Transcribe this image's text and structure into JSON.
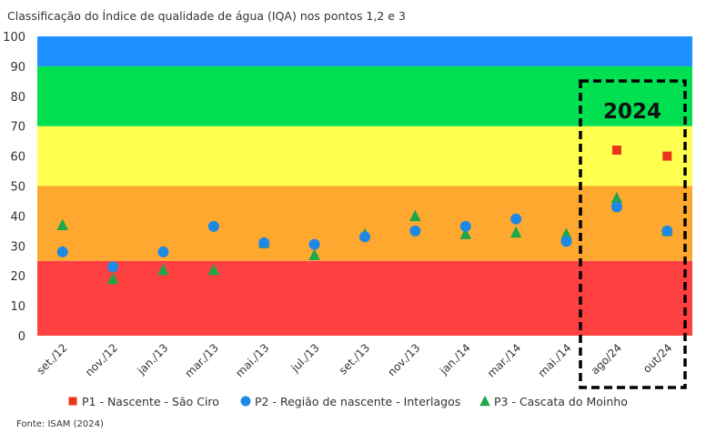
{
  "chart_data": {
    "type": "scatter",
    "title": "Classificação do Índice de qualidade de água (IQA) nos pontos 1,2 e 3",
    "source": "Fonte: ISAM (2024)",
    "highlight_label": "2024",
    "categories": [
      "set./12",
      "nov./12",
      "jan./13",
      "mar./13",
      "mai./13",
      "jul./13",
      "set./13",
      "nov./13",
      "jan./14",
      "mar./14",
      "mai./14",
      "ago/24",
      "out/24"
    ],
    "ylim": [
      0,
      100
    ],
    "yticks": [
      0,
      10,
      20,
      30,
      40,
      50,
      60,
      70,
      80,
      90,
      100
    ],
    "grid": false,
    "legend_position": "bottom",
    "bands": [
      {
        "from": 0,
        "to": 25,
        "color": "#ff4040"
      },
      {
        "from": 25,
        "to": 50,
        "color": "#ffa830"
      },
      {
        "from": 50,
        "to": 70,
        "color": "#ffff50"
      },
      {
        "from": 70,
        "to": 90,
        "color": "#00e050"
      },
      {
        "from": 90,
        "to": 100,
        "color": "#1e90ff"
      }
    ],
    "series": [
      {
        "name": "P1 - Nascente - São Ciro",
        "marker": "square",
        "color": "#e8361a",
        "values": [
          null,
          null,
          null,
          null,
          null,
          null,
          null,
          null,
          null,
          null,
          null,
          62,
          60
        ]
      },
      {
        "name": "P2 - Região de nascente - Interlagos",
        "marker": "circle",
        "color": "#1e88e5",
        "values": [
          28,
          23,
          28,
          36.5,
          31,
          30.5,
          33,
          35,
          36.5,
          39,
          31.5,
          43,
          35
        ]
      },
      {
        "name": "P3 - Cascata do Moinho",
        "marker": "triangle",
        "color": "#1fa64a",
        "values": [
          37,
          19,
          22,
          22,
          31,
          27,
          34,
          40,
          34,
          34.5,
          34,
          46,
          35
        ]
      }
    ]
  }
}
